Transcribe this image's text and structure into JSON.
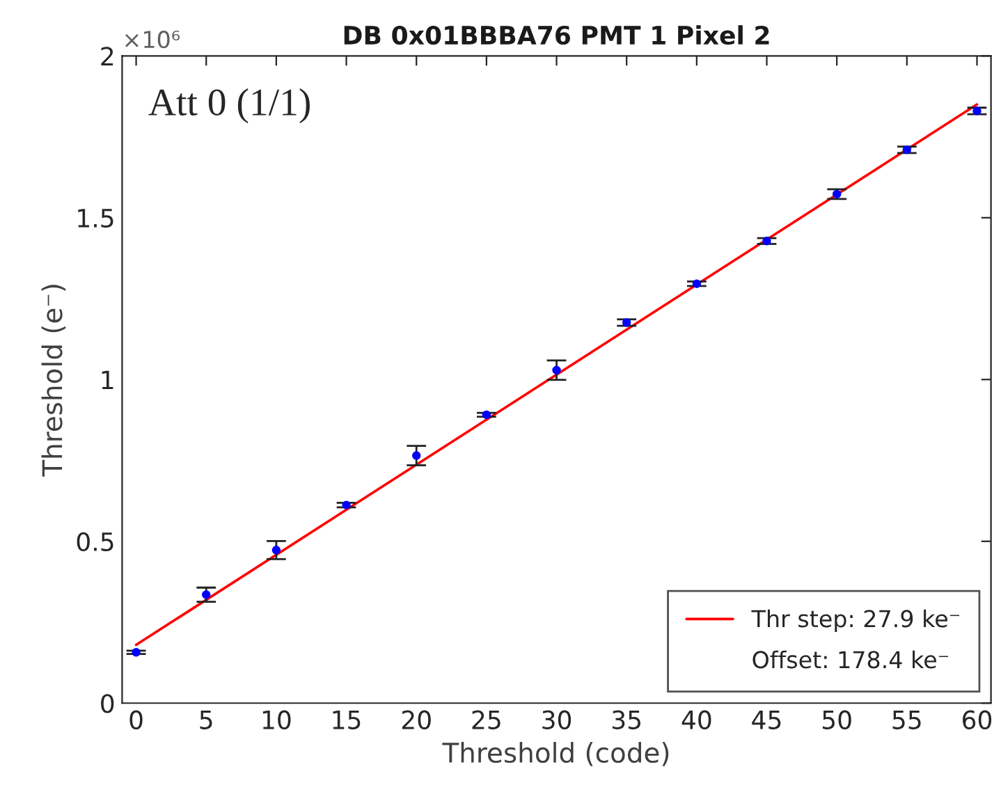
{
  "chart_data": {
    "type": "scatter",
    "title": "DB 0x01BBBA76 PMT 1 Pixel 2",
    "xlabel": "Threshold (code)",
    "ylabel": "Threshold (e⁻)",
    "annotations": [
      "×10⁶",
      "Att 0 (1/1)",
      "Offset: 178.4 ke⁻"
    ],
    "x": [
      0,
      5,
      10,
      15,
      20,
      25,
      30,
      35,
      40,
      45,
      50,
      55,
      60
    ],
    "series": [
      {
        "color": "#0000ff",
        "marker": "circle",
        "values": [
          0.157,
          0.335,
          0.473,
          0.612,
          0.765,
          0.891,
          1.029,
          1.176,
          1.296,
          1.428,
          1.573,
          1.71,
          1.83
        ],
        "errors": [
          0.005,
          0.022,
          0.028,
          0.007,
          0.03,
          0.006,
          0.03,
          0.01,
          0.007,
          0.009,
          0.015,
          0.01,
          0.01
        ]
      },
      {
        "type": "line",
        "name": "Thr step: 27.9 ke⁻",
        "color": "#ff0000",
        "x": [
          0,
          60
        ],
        "values": [
          0.18,
          1.85
        ]
      }
    ],
    "xlim": [
      -1,
      61
    ],
    "ylim": [
      0,
      2
    ],
    "xticks": [
      0,
      5,
      10,
      15,
      20,
      25,
      30,
      35,
      40,
      45,
      50,
      55,
      60
    ],
    "yticks": [
      0,
      0.5,
      1,
      1.5,
      2
    ],
    "grid": false,
    "legend": "bottom right"
  }
}
